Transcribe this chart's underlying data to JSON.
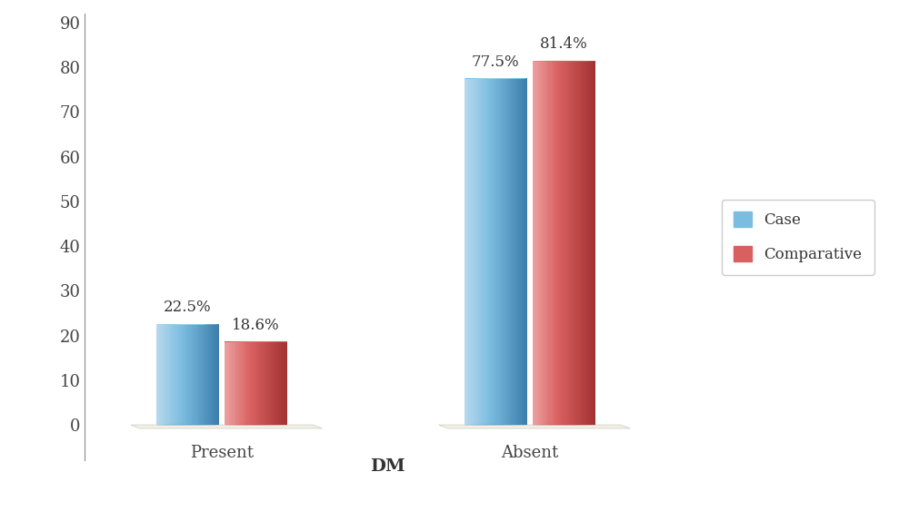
{
  "categories": [
    "Present",
    "Absent"
  ],
  "series": [
    {
      "name": "Case",
      "values": [
        22.5,
        77.5
      ],
      "color_mid": "#7BBDE0",
      "color_left": "#A8D4EE",
      "color_right": "#4A8CB8",
      "top_color": "#9DCDE8",
      "top_dark": "#6AADD0"
    },
    {
      "name": "Comparative",
      "values": [
        18.6,
        81.4
      ],
      "color_mid": "#D96060",
      "color_left": "#E89090",
      "color_right": "#B04040",
      "top_color": "#D87070",
      "top_dark": "#B85050"
    }
  ],
  "labels": [
    "22.5%",
    "18.6%",
    "77.5%",
    "81.4%"
  ],
  "xlabel": "DM",
  "ylim": [
    0,
    90
  ],
  "yticks": [
    0,
    10,
    20,
    30,
    40,
    50,
    60,
    70,
    80,
    90
  ],
  "background_color": "#FFFFFF",
  "legend_colors": [
    "#7BBDE0",
    "#D96060"
  ],
  "legend_labels": [
    "Case",
    "Comparative"
  ],
  "platform_color": "#F0EEE8",
  "platform_edge": "#D8D5C8"
}
